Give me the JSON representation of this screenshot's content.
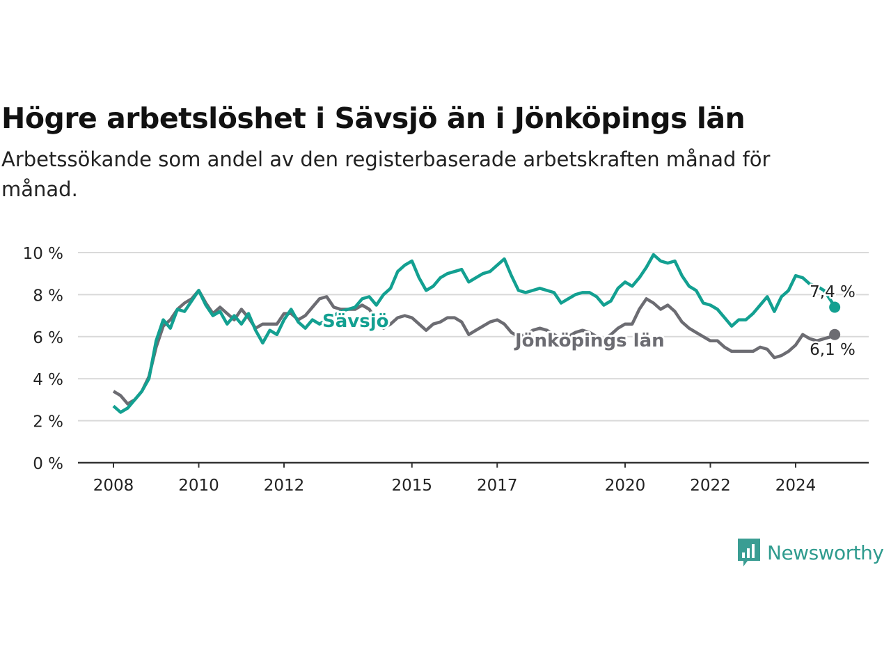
{
  "header": {
    "title": "Högre arbetslöshet i Sävsjö än i Jönköpings län",
    "subtitle": "Arbetssökande som andel av den registerbaserade arbetskraften månad för månad."
  },
  "brand": {
    "name": "Newsworthy",
    "icon": "newsworthy-logo-icon",
    "color": "#3a9d93"
  },
  "chart_data": {
    "type": "line",
    "title": "Högre arbetslöshet i Sävsjö än i Jönköpings län",
    "subtitle": "Arbetssökande som andel av den registerbaserade arbetskraften månad för månad.",
    "xlabel": "",
    "ylabel": "",
    "ylim": [
      0,
      10
    ],
    "xlim": [
      "2008-01",
      "2024-12"
    ],
    "x_ticks": [
      "2008",
      "2010",
      "2012",
      "2015",
      "2017",
      "2020",
      "2022",
      "2024"
    ],
    "y_ticks": [
      "0 %",
      "2 %",
      "4 %",
      "6 %",
      "8 %",
      "10 %"
    ],
    "grid": "horizontal",
    "legend": "inline labels",
    "series": [
      {
        "name": "Sävsjö",
        "color": "#13a091",
        "end_label": "7,4 %",
        "points": [
          [
            "2008-01",
            2.7
          ],
          [
            "2008-03",
            2.4
          ],
          [
            "2008-05",
            2.6
          ],
          [
            "2008-07",
            3.0
          ],
          [
            "2008-09",
            3.4
          ],
          [
            "2008-11",
            4.0
          ],
          [
            "2009-01",
            5.8
          ],
          [
            "2009-03",
            6.8
          ],
          [
            "2009-05",
            6.4
          ],
          [
            "2009-07",
            7.3
          ],
          [
            "2009-09",
            7.2
          ],
          [
            "2009-11",
            7.7
          ],
          [
            "2010-01",
            8.2
          ],
          [
            "2010-03",
            7.5
          ],
          [
            "2010-05",
            7.0
          ],
          [
            "2010-07",
            7.2
          ],
          [
            "2010-09",
            6.6
          ],
          [
            "2010-11",
            7.0
          ],
          [
            "2011-01",
            6.6
          ],
          [
            "2011-03",
            7.1
          ],
          [
            "2011-05",
            6.3
          ],
          [
            "2011-07",
            5.7
          ],
          [
            "2011-09",
            6.3
          ],
          [
            "2011-11",
            6.1
          ],
          [
            "2012-01",
            6.8
          ],
          [
            "2012-03",
            7.3
          ],
          [
            "2012-05",
            6.7
          ],
          [
            "2012-07",
            6.4
          ],
          [
            "2012-09",
            6.8
          ],
          [
            "2012-11",
            6.6
          ],
          [
            "2013-01",
            6.8
          ],
          [
            "2013-03",
            7.0
          ],
          [
            "2013-05",
            7.2
          ],
          [
            "2013-07",
            7.3
          ],
          [
            "2013-09",
            7.4
          ],
          [
            "2013-11",
            7.8
          ],
          [
            "2014-01",
            7.9
          ],
          [
            "2014-03",
            7.5
          ],
          [
            "2014-05",
            8.0
          ],
          [
            "2014-07",
            8.3
          ],
          [
            "2014-09",
            9.1
          ],
          [
            "2014-11",
            9.4
          ],
          [
            "2015-01",
            9.6
          ],
          [
            "2015-03",
            8.8
          ],
          [
            "2015-05",
            8.2
          ],
          [
            "2015-07",
            8.4
          ],
          [
            "2015-09",
            8.8
          ],
          [
            "2015-11",
            9.0
          ],
          [
            "2016-01",
            9.1
          ],
          [
            "2016-03",
            9.2
          ],
          [
            "2016-05",
            8.6
          ],
          [
            "2016-07",
            8.8
          ],
          [
            "2016-09",
            9.0
          ],
          [
            "2016-11",
            9.1
          ],
          [
            "2017-01",
            9.4
          ],
          [
            "2017-03",
            9.7
          ],
          [
            "2017-05",
            8.9
          ],
          [
            "2017-07",
            8.2
          ],
          [
            "2017-09",
            8.1
          ],
          [
            "2017-11",
            8.2
          ],
          [
            "2018-01",
            8.3
          ],
          [
            "2018-03",
            8.2
          ],
          [
            "2018-05",
            8.1
          ],
          [
            "2018-07",
            7.6
          ],
          [
            "2018-09",
            7.8
          ],
          [
            "2018-11",
            8.0
          ],
          [
            "2019-01",
            8.1
          ],
          [
            "2019-03",
            8.1
          ],
          [
            "2019-05",
            7.9
          ],
          [
            "2019-07",
            7.5
          ],
          [
            "2019-09",
            7.7
          ],
          [
            "2019-11",
            8.3
          ],
          [
            "2020-01",
            8.6
          ],
          [
            "2020-03",
            8.4
          ],
          [
            "2020-05",
            8.8
          ],
          [
            "2020-07",
            9.3
          ],
          [
            "2020-09",
            9.9
          ],
          [
            "2020-11",
            9.6
          ],
          [
            "2021-01",
            9.5
          ],
          [
            "2021-03",
            9.6
          ],
          [
            "2021-05",
            8.9
          ],
          [
            "2021-07",
            8.4
          ],
          [
            "2021-09",
            8.2
          ],
          [
            "2021-11",
            7.6
          ],
          [
            "2022-01",
            7.5
          ],
          [
            "2022-03",
            7.3
          ],
          [
            "2022-05",
            6.9
          ],
          [
            "2022-07",
            6.5
          ],
          [
            "2022-09",
            6.8
          ],
          [
            "2022-11",
            6.8
          ],
          [
            "2023-01",
            7.1
          ],
          [
            "2023-03",
            7.5
          ],
          [
            "2023-05",
            7.9
          ],
          [
            "2023-07",
            7.2
          ],
          [
            "2023-09",
            7.9
          ],
          [
            "2023-11",
            8.2
          ],
          [
            "2024-01",
            8.9
          ],
          [
            "2024-03",
            8.8
          ],
          [
            "2024-05",
            8.5
          ],
          [
            "2024-07",
            8.4
          ],
          [
            "2024-09",
            8.2
          ],
          [
            "2024-11",
            7.7
          ],
          [
            "2024-12",
            7.4
          ]
        ]
      },
      {
        "name": "Jönköpings län",
        "color": "#6c6c72",
        "end_label": "6,1 %",
        "points": [
          [
            "2008-01",
            3.4
          ],
          [
            "2008-03",
            3.2
          ],
          [
            "2008-05",
            2.8
          ],
          [
            "2008-07",
            3.0
          ],
          [
            "2008-09",
            3.4
          ],
          [
            "2008-11",
            4.1
          ],
          [
            "2009-01",
            5.5
          ],
          [
            "2009-03",
            6.5
          ],
          [
            "2009-05",
            6.8
          ],
          [
            "2009-07",
            7.3
          ],
          [
            "2009-09",
            7.6
          ],
          [
            "2009-11",
            7.8
          ],
          [
            "2010-01",
            8.2
          ],
          [
            "2010-03",
            7.6
          ],
          [
            "2010-05",
            7.1
          ],
          [
            "2010-07",
            7.4
          ],
          [
            "2010-09",
            7.1
          ],
          [
            "2010-11",
            6.8
          ],
          [
            "2011-01",
            7.3
          ],
          [
            "2011-03",
            6.9
          ],
          [
            "2011-05",
            6.4
          ],
          [
            "2011-07",
            6.6
          ],
          [
            "2011-09",
            6.6
          ],
          [
            "2011-11",
            6.6
          ],
          [
            "2012-01",
            7.1
          ],
          [
            "2012-03",
            7.1
          ],
          [
            "2012-05",
            6.8
          ],
          [
            "2012-07",
            7.0
          ],
          [
            "2012-09",
            7.4
          ],
          [
            "2012-11",
            7.8
          ],
          [
            "2013-01",
            7.9
          ],
          [
            "2013-03",
            7.4
          ],
          [
            "2013-05",
            7.3
          ],
          [
            "2013-07",
            7.3
          ],
          [
            "2013-09",
            7.3
          ],
          [
            "2013-11",
            7.5
          ],
          [
            "2014-01",
            7.3
          ],
          [
            "2014-03",
            6.8
          ],
          [
            "2014-05",
            6.4
          ],
          [
            "2014-07",
            6.6
          ],
          [
            "2014-09",
            6.9
          ],
          [
            "2014-11",
            7.0
          ],
          [
            "2015-01",
            6.9
          ],
          [
            "2015-03",
            6.6
          ],
          [
            "2015-05",
            6.3
          ],
          [
            "2015-07",
            6.6
          ],
          [
            "2015-09",
            6.7
          ],
          [
            "2015-11",
            6.9
          ],
          [
            "2016-01",
            6.9
          ],
          [
            "2016-03",
            6.7
          ],
          [
            "2016-05",
            6.1
          ],
          [
            "2016-07",
            6.3
          ],
          [
            "2016-09",
            6.5
          ],
          [
            "2016-11",
            6.7
          ],
          [
            "2017-01",
            6.8
          ],
          [
            "2017-03",
            6.6
          ],
          [
            "2017-05",
            6.2
          ],
          [
            "2017-07",
            6.0
          ],
          [
            "2017-09",
            6.1
          ],
          [
            "2017-11",
            6.3
          ],
          [
            "2018-01",
            6.4
          ],
          [
            "2018-03",
            6.3
          ],
          [
            "2018-05",
            6.1
          ],
          [
            "2018-07",
            5.9
          ],
          [
            "2018-09",
            6.0
          ],
          [
            "2018-11",
            6.2
          ],
          [
            "2019-01",
            6.3
          ],
          [
            "2019-03",
            6.2
          ],
          [
            "2019-05",
            6.0
          ],
          [
            "2019-07",
            5.9
          ],
          [
            "2019-09",
            6.1
          ],
          [
            "2019-11",
            6.4
          ],
          [
            "2020-01",
            6.6
          ],
          [
            "2020-03",
            6.6
          ],
          [
            "2020-05",
            7.3
          ],
          [
            "2020-07",
            7.8
          ],
          [
            "2020-09",
            7.6
          ],
          [
            "2020-11",
            7.3
          ],
          [
            "2021-01",
            7.5
          ],
          [
            "2021-03",
            7.2
          ],
          [
            "2021-05",
            6.7
          ],
          [
            "2021-07",
            6.4
          ],
          [
            "2021-09",
            6.2
          ],
          [
            "2021-11",
            6.0
          ],
          [
            "2022-01",
            5.8
          ],
          [
            "2022-03",
            5.8
          ],
          [
            "2022-05",
            5.5
          ],
          [
            "2022-07",
            5.3
          ],
          [
            "2022-09",
            5.3
          ],
          [
            "2022-11",
            5.3
          ],
          [
            "2023-01",
            5.3
          ],
          [
            "2023-03",
            5.5
          ],
          [
            "2023-05",
            5.4
          ],
          [
            "2023-07",
            5.0
          ],
          [
            "2023-09",
            5.1
          ],
          [
            "2023-11",
            5.3
          ],
          [
            "2024-01",
            5.6
          ],
          [
            "2024-03",
            6.1
          ],
          [
            "2024-05",
            5.9
          ],
          [
            "2024-07",
            5.8
          ],
          [
            "2024-09",
            5.9
          ],
          [
            "2024-11",
            6.0
          ],
          [
            "2024-12",
            6.1
          ]
        ]
      }
    ]
  }
}
